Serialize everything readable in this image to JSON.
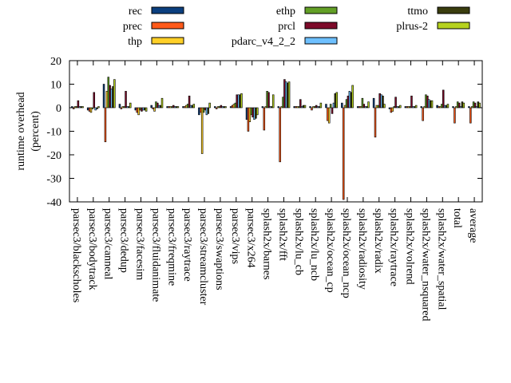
{
  "chart_data": {
    "type": "bar",
    "ylabel": "runtime overhead\n(percent)",
    "ylim": [
      -40,
      20
    ],
    "yticks": [
      20,
      10,
      0,
      -10,
      -20,
      -30,
      -40
    ],
    "grid": false,
    "legend_position": "top",
    "categories": [
      "parsec3/blackscholes",
      "parsec3/bodytrack",
      "parsec3/canneal",
      "parsec3/dedup",
      "parsec3/facesim",
      "parsec3/fluidanimate",
      "parsec3/freqmine",
      "parsec3/raytrace",
      "parsec3/streamcluster",
      "parsec3/swaptions",
      "parsec3/vips",
      "parsec3/x264",
      "splash2x/barnes",
      "splash2x/fft",
      "splash2x/lu_cb",
      "splash2x/lu_ncb",
      "splash2x/ocean_cp",
      "splash2x/ocean_ncp",
      "splash2x/radiosity",
      "splash2x/radix",
      "splash2x/raytrace",
      "splash2x/volrend",
      "splash2x/water_nsquared",
      "splash2x/water_spatial",
      "total",
      "average"
    ],
    "series": [
      {
        "name": "rec",
        "color": "#0b3f7f",
        "values": [
          0.5,
          -1.0,
          10.0,
          1.5,
          -1.0,
          1.0,
          0.5,
          0.5,
          -3.0,
          0.5,
          0.5,
          -5.0,
          0.5,
          0.5,
          0.5,
          0.5,
          1.5,
          2.0,
          0.5,
          4.0,
          -0.5,
          0.5,
          0.5,
          1.0,
          0.5,
          0.5
        ]
      },
      {
        "name": "prec",
        "color": "#ff5a1a",
        "values": [
          -0.5,
          -1.5,
          -14.5,
          -0.5,
          -2.0,
          -0.5,
          0.5,
          0.5,
          -2.0,
          -0.5,
          1.0,
          -10.0,
          -9.5,
          -23.0,
          0.5,
          -1.0,
          -5.5,
          -39.0,
          0.5,
          -12.5,
          -2.0,
          0.5,
          -5.5,
          0.5,
          -6.5,
          -6.5
        ]
      },
      {
        "name": "thp",
        "color": "#ffd028",
        "values": [
          0.5,
          -2.0,
          7.0,
          0.5,
          -3.0,
          -1.5,
          0.5,
          1.0,
          -19.5,
          0.5,
          1.5,
          -6.0,
          0.5,
          0.5,
          0.5,
          0.5,
          -6.5,
          1.0,
          0.5,
          1.0,
          -1.5,
          0.5,
          0.5,
          0.5,
          0.5,
          0.5
        ]
      },
      {
        "name": "ethp",
        "color": "#63a026",
        "values": [
          0.5,
          -0.5,
          13.0,
          0.5,
          -1.0,
          2.5,
          0.5,
          1.5,
          -2.0,
          0.5,
          2.0,
          -3.0,
          7.0,
          4.5,
          0.5,
          0.5,
          1.5,
          3.5,
          4.0,
          1.0,
          0.5,
          0.5,
          5.5,
          1.5,
          2.5,
          2.5
        ]
      },
      {
        "name": "prcl",
        "color": "#7d0a29",
        "values": [
          3.0,
          6.5,
          9.5,
          7.0,
          -1.5,
          2.0,
          1.0,
          5.0,
          -1.0,
          1.0,
          5.5,
          -4.0,
          6.5,
          12.0,
          3.5,
          1.0,
          -2.5,
          5.0,
          1.5,
          6.0,
          4.5,
          5.0,
          5.0,
          7.5,
          2.0,
          2.0
        ]
      },
      {
        "name": "pdarc_v4_2_2",
        "color": "#6ec0ff",
        "values": [
          0.5,
          -1.0,
          8.0,
          0.5,
          -1.0,
          1.0,
          0.5,
          1.0,
          -3.0,
          0.5,
          5.5,
          -5.0,
          0.5,
          11.0,
          0.5,
          0.5,
          2.0,
          7.0,
          0.5,
          5.5,
          0.5,
          0.5,
          3.5,
          1.0,
          0.5,
          0.5
        ]
      },
      {
        "name": "ttmo",
        "color": "#3a3d0e",
        "values": [
          0.5,
          -0.5,
          9.0,
          0.5,
          -1.0,
          1.0,
          0.5,
          1.0,
          -2.5,
          0.5,
          5.5,
          -4.5,
          0.5,
          10.5,
          1.0,
          0.5,
          6.0,
          6.5,
          0.5,
          5.0,
          0.5,
          0.5,
          3.0,
          1.0,
          2.5,
          2.5
        ]
      },
      {
        "name": "plrus-2",
        "color": "#b6d21e",
        "values": [
          0.5,
          0.5,
          12.0,
          2.0,
          -1.5,
          4.0,
          0.5,
          1.5,
          2.0,
          0.5,
          6.0,
          -3.0,
          5.5,
          11.0,
          1.0,
          2.0,
          6.5,
          9.5,
          2.5,
          1.5,
          1.0,
          1.0,
          3.0,
          1.5,
          2.0,
          2.0
        ]
      }
    ]
  }
}
